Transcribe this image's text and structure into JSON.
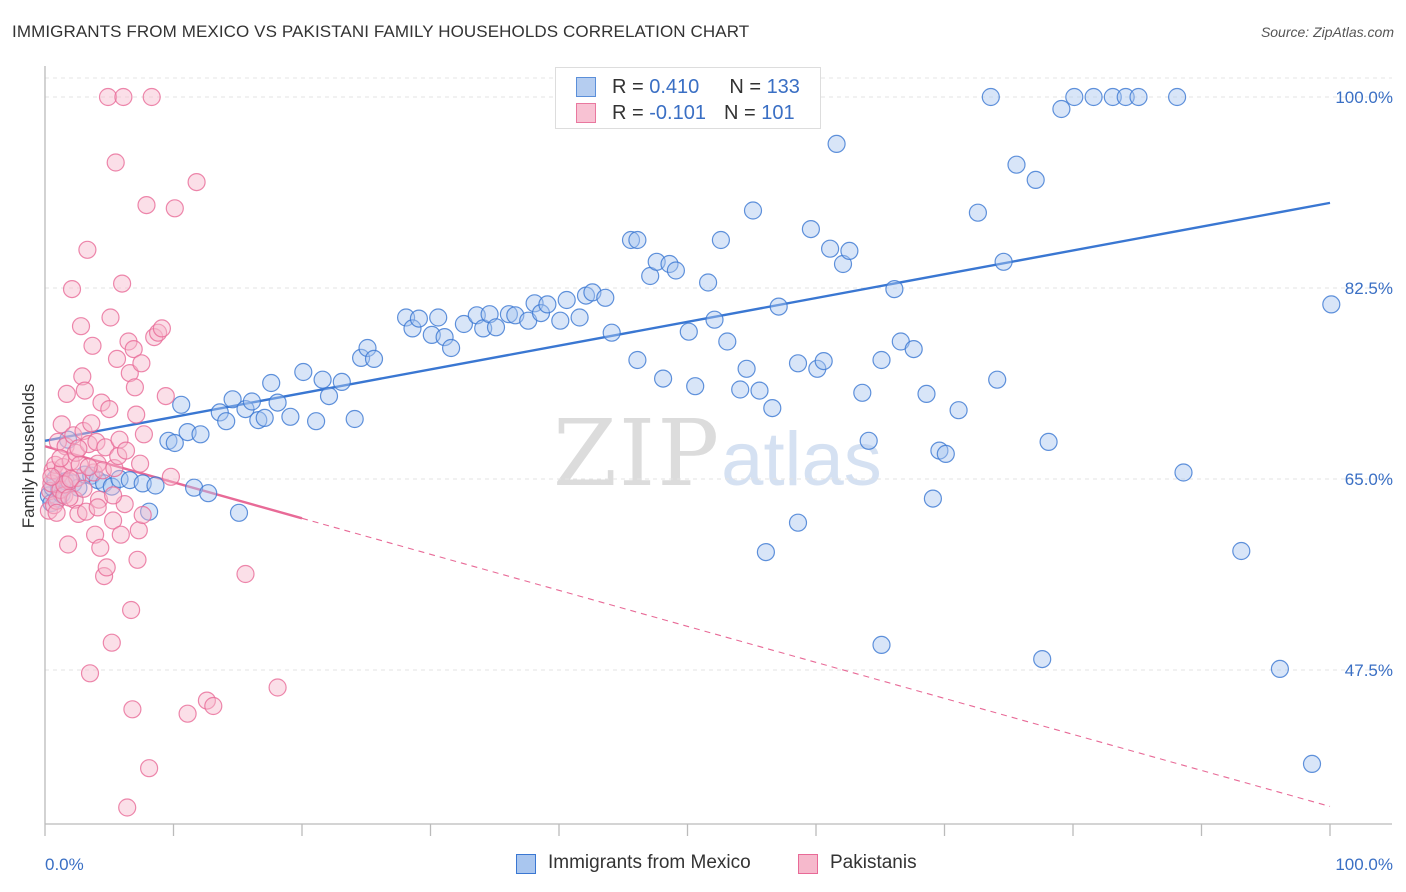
{
  "title": "IMMIGRANTS FROM MEXICO VS PAKISTANI FAMILY HOUSEHOLDS CORRELATION CHART",
  "source": "Source: ZipAtlas.com",
  "watermark": {
    "zip": "ZIP",
    "atlas": "atlas"
  },
  "legend_top": {
    "rows": [
      {
        "r_label": "R = ",
        "r_value": "0.410",
        "n_label": "N = ",
        "n_value": "133",
        "color": "#5b8fd9",
        "fill": "#b5cdf0"
      },
      {
        "r_label": "R = ",
        "r_value": "-0.101",
        "n_label": "N = ",
        "n_value": "101",
        "color": "#e9789f",
        "fill": "#f8c2d3"
      }
    ]
  },
  "chart_data": {
    "type": "scatter",
    "ylabel": "Family Households",
    "xlabel": "",
    "xlim": [
      0,
      100
    ],
    "ylim": [
      32.5,
      103
    ],
    "x_tick_labels": [
      "0.0%",
      "100.0%"
    ],
    "y_ticks": [
      {
        "value": 100.0,
        "label": "100.0%"
      },
      {
        "value": 82.5,
        "label": "82.5%"
      },
      {
        "value": 65.0,
        "label": "65.0%"
      },
      {
        "value": 47.5,
        "label": "47.5%"
      }
    ],
    "grid": true,
    "legend": "bottom",
    "series": [
      {
        "name": "Immigrants from Mexico",
        "color": "#3a77d2",
        "fill": "#a9c6ef",
        "trend": {
          "x0": 0,
          "y0": 68.5,
          "x1": 100,
          "y1": 90.3,
          "solid_until": 100
        },
        "points": [
          [
            0.3,
            63.5
          ],
          [
            0.5,
            62.8
          ],
          [
            0.6,
            64.2
          ],
          [
            0.8,
            65.0
          ],
          [
            1.0,
            63.2
          ],
          [
            1.1,
            64.0
          ],
          [
            1.3,
            63.6
          ],
          [
            1.6,
            64.8
          ],
          [
            1.8,
            68.6
          ],
          [
            2.2,
            64.6
          ],
          [
            2.6,
            64.2
          ],
          [
            3.1,
            65.4
          ],
          [
            3.6,
            65.3
          ],
          [
            4.1,
            64.9
          ],
          [
            4.6,
            64.6
          ],
          [
            5.2,
            64.3
          ],
          [
            5.8,
            65.0
          ],
          [
            6.6,
            64.9
          ],
          [
            7.6,
            64.6
          ],
          [
            8.1,
            62.0
          ],
          [
            8.6,
            64.4
          ],
          [
            9.6,
            68.5
          ],
          [
            10.1,
            68.3
          ],
          [
            10.6,
            71.8
          ],
          [
            11.1,
            69.3
          ],
          [
            11.6,
            64.2
          ],
          [
            12.1,
            69.1
          ],
          [
            12.7,
            63.7
          ],
          [
            13.6,
            71.1
          ],
          [
            14.1,
            70.3
          ],
          [
            14.6,
            72.3
          ],
          [
            15.1,
            61.9
          ],
          [
            15.6,
            71.4
          ],
          [
            16.1,
            72.1
          ],
          [
            16.6,
            70.4
          ],
          [
            17.1,
            70.6
          ],
          [
            17.6,
            73.8
          ],
          [
            18.1,
            72.0
          ],
          [
            19.1,
            70.7
          ],
          [
            20.1,
            74.8
          ],
          [
            21.1,
            70.3
          ],
          [
            21.6,
            74.1
          ],
          [
            22.1,
            72.6
          ],
          [
            23.1,
            73.9
          ],
          [
            24.1,
            70.5
          ],
          [
            24.6,
            76.1
          ],
          [
            25.1,
            77.0
          ],
          [
            25.6,
            76.0
          ],
          [
            28.1,
            79.8
          ],
          [
            28.6,
            78.8
          ],
          [
            29.1,
            79.7
          ],
          [
            30.1,
            78.2
          ],
          [
            30.6,
            79.8
          ],
          [
            31.1,
            78.0
          ],
          [
            31.6,
            77.0
          ],
          [
            32.6,
            79.2
          ],
          [
            33.6,
            80.0
          ],
          [
            34.1,
            78.8
          ],
          [
            34.6,
            80.1
          ],
          [
            35.1,
            78.9
          ],
          [
            36.1,
            80.1
          ],
          [
            36.6,
            80.0
          ],
          [
            37.6,
            79.5
          ],
          [
            38.1,
            81.1
          ],
          [
            38.6,
            80.2
          ],
          [
            39.1,
            81.0
          ],
          [
            40.1,
            79.5
          ],
          [
            40.6,
            81.4
          ],
          [
            41.6,
            79.8
          ],
          [
            42.1,
            81.8
          ],
          [
            42.6,
            82.1
          ],
          [
            43.6,
            81.6
          ],
          [
            44.1,
            78.4
          ],
          [
            45.6,
            86.9
          ],
          [
            46.1,
            86.9
          ],
          [
            46.1,
            75.9
          ],
          [
            47.1,
            83.6
          ],
          [
            47.6,
            84.9
          ],
          [
            48.1,
            74.2
          ],
          [
            48.6,
            84.7
          ],
          [
            49.1,
            84.1
          ],
          [
            50.1,
            78.5
          ],
          [
            50.6,
            73.5
          ],
          [
            51.6,
            83.0
          ],
          [
            52.1,
            79.6
          ],
          [
            52.6,
            86.9
          ],
          [
            53.1,
            77.6
          ],
          [
            54.1,
            73.2
          ],
          [
            54.6,
            75.1
          ],
          [
            55.1,
            89.6
          ],
          [
            55.6,
            73.1
          ],
          [
            56.1,
            58.3
          ],
          [
            56.6,
            71.5
          ],
          [
            57.1,
            80.8
          ],
          [
            58.6,
            61.0
          ],
          [
            58.6,
            75.6
          ],
          [
            59.6,
            87.9
          ],
          [
            60.1,
            75.1
          ],
          [
            60.6,
            75.8
          ],
          [
            61.1,
            86.1
          ],
          [
            61.6,
            95.7
          ],
          [
            62.1,
            84.7
          ],
          [
            62.6,
            85.9
          ],
          [
            63.6,
            72.9
          ],
          [
            64.1,
            68.5
          ],
          [
            65.1,
            49.8
          ],
          [
            65.1,
            75.9
          ],
          [
            66.1,
            82.4
          ],
          [
            66.6,
            77.6
          ],
          [
            67.6,
            76.9
          ],
          [
            68.6,
            72.8
          ],
          [
            69.1,
            63.2
          ],
          [
            69.6,
            67.6
          ],
          [
            70.1,
            67.3
          ],
          [
            71.1,
            71.3
          ],
          [
            72.6,
            89.4
          ],
          [
            73.6,
            100.0
          ],
          [
            74.1,
            74.1
          ],
          [
            74.6,
            84.9
          ],
          [
            75.6,
            93.8
          ],
          [
            77.1,
            92.4
          ],
          [
            77.6,
            48.5
          ],
          [
            78.1,
            68.4
          ],
          [
            79.1,
            98.9
          ],
          [
            80.1,
            100.0
          ],
          [
            81.6,
            100.0
          ],
          [
            83.1,
            100.0
          ],
          [
            84.1,
            100.0
          ],
          [
            85.1,
            100.0
          ],
          [
            88.1,
            100.0
          ],
          [
            88.6,
            65.6
          ],
          [
            93.1,
            58.4
          ],
          [
            96.1,
            47.6
          ],
          [
            98.6,
            38.9
          ],
          [
            100.1,
            81.0
          ],
          [
            51.6,
            100.0
          ],
          [
            52.6,
            100.0
          ]
        ]
      },
      {
        "name": "Pakistanis",
        "color": "#e86a97",
        "fill": "#f6b9cc",
        "trend": {
          "x0": 0,
          "y0": 68.0,
          "x1": 100,
          "y1": 35.0,
          "solid_until": 20
        },
        "points": [
          [
            0.3,
            62.1
          ],
          [
            0.4,
            63.9
          ],
          [
            0.5,
            64.6
          ],
          [
            0.6,
            65.8
          ],
          [
            0.7,
            62.6
          ],
          [
            0.8,
            66.3
          ],
          [
            0.9,
            63.0
          ],
          [
            1.0,
            68.4
          ],
          [
            1.1,
            65.4
          ],
          [
            1.2,
            64.0
          ],
          [
            1.3,
            70.0
          ],
          [
            1.4,
            66.1
          ],
          [
            1.5,
            63.5
          ],
          [
            1.6,
            68.0
          ],
          [
            1.7,
            72.8
          ],
          [
            1.8,
            59.0
          ],
          [
            1.9,
            64.8
          ],
          [
            2.0,
            66.6
          ],
          [
            2.1,
            82.4
          ],
          [
            2.2,
            69.0
          ],
          [
            2.3,
            63.1
          ],
          [
            2.4,
            67.4
          ],
          [
            2.5,
            65.1
          ],
          [
            2.6,
            61.8
          ],
          [
            2.7,
            66.3
          ],
          [
            2.8,
            79.0
          ],
          [
            2.9,
            74.4
          ],
          [
            3.0,
            69.4
          ],
          [
            3.1,
            73.1
          ],
          [
            3.2,
            62.0
          ],
          [
            3.3,
            86.0
          ],
          [
            3.4,
            68.2
          ],
          [
            3.5,
            47.2
          ],
          [
            3.6,
            70.1
          ],
          [
            3.7,
            77.2
          ],
          [
            3.8,
            65.6
          ],
          [
            3.9,
            59.9
          ],
          [
            4.0,
            68.4
          ],
          [
            4.1,
            66.4
          ],
          [
            4.2,
            63.1
          ],
          [
            4.3,
            58.7
          ],
          [
            4.4,
            72.0
          ],
          [
            4.5,
            65.8
          ],
          [
            4.6,
            56.1
          ],
          [
            4.7,
            67.9
          ],
          [
            4.8,
            56.9
          ],
          [
            4.9,
            100.0
          ],
          [
            5.0,
            71.4
          ],
          [
            5.1,
            79.8
          ],
          [
            5.2,
            50.0
          ],
          [
            5.3,
            61.2
          ],
          [
            5.4,
            66.0
          ],
          [
            5.5,
            94.0
          ],
          [
            5.6,
            76.0
          ],
          [
            5.7,
            67.1
          ],
          [
            5.8,
            68.6
          ],
          [
            5.9,
            59.9
          ],
          [
            6.0,
            82.9
          ],
          [
            6.1,
            100.0
          ],
          [
            6.2,
            62.7
          ],
          [
            6.3,
            67.6
          ],
          [
            6.4,
            34.9
          ],
          [
            6.5,
            77.6
          ],
          [
            6.6,
            74.7
          ],
          [
            6.7,
            53.0
          ],
          [
            6.8,
            43.9
          ],
          [
            6.9,
            76.9
          ],
          [
            7.0,
            73.4
          ],
          [
            7.1,
            70.9
          ],
          [
            7.2,
            57.6
          ],
          [
            7.3,
            60.3
          ],
          [
            7.4,
            66.4
          ],
          [
            7.5,
            75.6
          ],
          [
            7.6,
            61.7
          ],
          [
            7.7,
            69.1
          ],
          [
            7.9,
            90.1
          ],
          [
            8.1,
            38.5
          ],
          [
            8.3,
            100.0
          ],
          [
            8.5,
            78.0
          ],
          [
            8.8,
            78.4
          ],
          [
            9.1,
            78.8
          ],
          [
            9.4,
            72.6
          ],
          [
            9.8,
            65.2
          ],
          [
            10.1,
            89.8
          ],
          [
            11.1,
            43.5
          ],
          [
            11.8,
            92.2
          ],
          [
            12.6,
            44.7
          ],
          [
            13.1,
            44.2
          ],
          [
            15.6,
            56.3
          ],
          [
            18.1,
            45.9
          ],
          [
            1.5,
            64.5
          ],
          [
            2.0,
            65.0
          ],
          [
            0.5,
            65.2
          ],
          [
            1.2,
            66.9
          ],
          [
            3.0,
            64.1
          ],
          [
            2.6,
            67.8
          ],
          [
            4.1,
            62.4
          ],
          [
            1.9,
            63.3
          ],
          [
            0.9,
            61.9
          ],
          [
            3.4,
            66.1
          ],
          [
            5.3,
            63.5
          ]
        ]
      }
    ]
  }
}
